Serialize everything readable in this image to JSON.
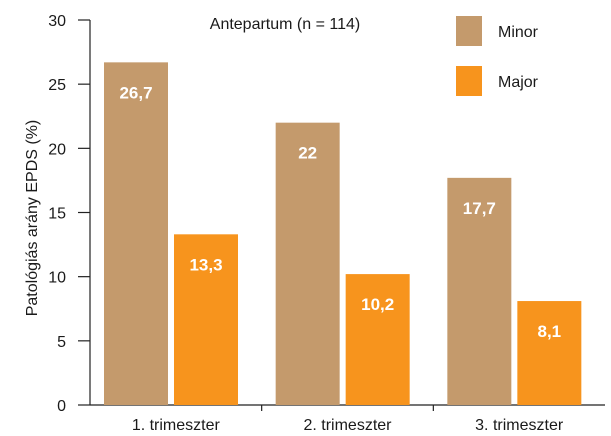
{
  "chart_data": {
    "type": "bar",
    "title": "Antepartum (n = 114)",
    "ylabel": "Patológiás arány EPDS (%)",
    "xlabel": "",
    "categories": [
      "1. trimeszter",
      "2. trimeszter",
      "3. trimeszter"
    ],
    "ylim": [
      0,
      30
    ],
    "yticks": [
      0,
      5,
      10,
      15,
      20,
      25,
      30
    ],
    "grid": false,
    "legend_position": "top-right",
    "series": [
      {
        "name": "Minor",
        "color": "#C49A6C",
        "values": [
          26.7,
          22,
          17.7
        ],
        "labels": [
          "26,7",
          "22",
          "17,7"
        ]
      },
      {
        "name": "Major",
        "color": "#F7941D",
        "values": [
          13.3,
          10.2,
          8.1
        ],
        "labels": [
          "13,3",
          "10,2",
          "8,1"
        ]
      }
    ]
  }
}
